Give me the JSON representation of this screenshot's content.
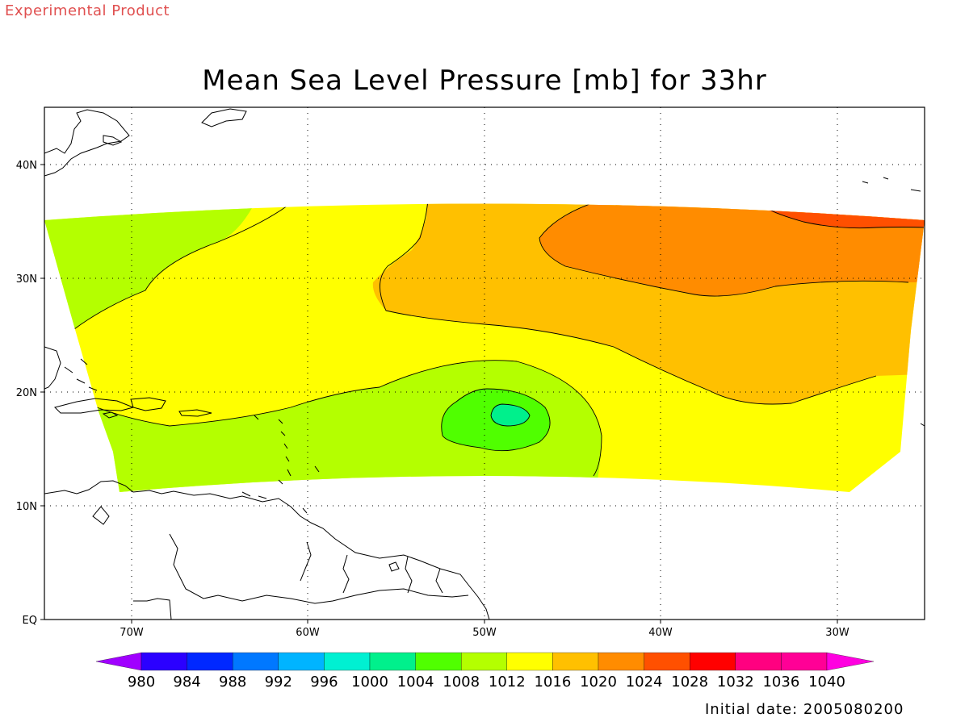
{
  "banner": "Experimental Product",
  "title": "Mean Sea Level Pressure [mb] for 33hr",
  "initial_date_label": "Initial date: 2005080200",
  "map": {
    "lat_labels": [
      "EQ",
      "10N",
      "20N",
      "30N",
      "40N"
    ],
    "lon_labels": [
      "70W",
      "60W",
      "50W",
      "40W",
      "30W"
    ],
    "grid": "dotted"
  },
  "colorbar": {
    "labels": [
      "980",
      "984",
      "988",
      "992",
      "996",
      "1000",
      "1004",
      "1008",
      "1012",
      "1016",
      "1020",
      "1024",
      "1028",
      "1032",
      "1036",
      "1040"
    ],
    "colors": [
      "#a000ff",
      "#2b00ff",
      "#0028ff",
      "#0078ff",
      "#00b4ff",
      "#00f0d2",
      "#00f08c",
      "#50ff00",
      "#b4ff00",
      "#ffff00",
      "#ffc000",
      "#ff8c00",
      "#ff5000",
      "#ff0000",
      "#ff0080",
      "#ff0096",
      "#ff00e0"
    ]
  },
  "fields": {
    "c1012": "#b4ff00",
    "c1016": "#ffff00",
    "c1020": "#ffc000",
    "c1024": "#ff8c00",
    "c1028": "#ff5000",
    "c1008": "#50ff00",
    "c1004": "#00f08c"
  }
}
